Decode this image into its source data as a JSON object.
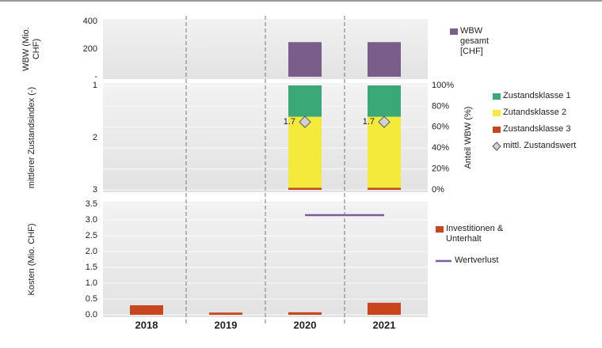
{
  "chart_data": [
    {
      "type": "bar",
      "ylabel": "WBW (Mio. CHF)",
      "ylim": [
        0,
        400
      ],
      "yticks": [
        {
          "value": 0,
          "label": "-"
        },
        200,
        400
      ],
      "series": [
        {
          "name": "WBW gesamt [CHF]",
          "color": "#7b5d8a",
          "values": [
            null,
            null,
            250,
            250
          ]
        }
      ]
    },
    {
      "type": "stacked_bar",
      "ylabel": "mittlerer Zustandsindex (-)",
      "y2label": "Anteil WBW (%)",
      "ylim": [
        3,
        1
      ],
      "yticks": [
        1,
        2,
        3
      ],
      "y2lim": [
        0,
        100
      ],
      "y2ticks": [
        {
          "value": 0,
          "label": "0%"
        },
        {
          "value": 20,
          "label": "20%"
        },
        {
          "value": 40,
          "label": "40%"
        },
        {
          "value": 60,
          "label": "60%"
        },
        {
          "value": 80,
          "label": "80%"
        },
        {
          "value": 100,
          "label": "100%"
        }
      ],
      "grid": true,
      "series": [
        {
          "name": "Zustandsklasse 1",
          "color": "#3aa877",
          "axis": "y2",
          "values": [
            null,
            null,
            30,
            30
          ]
        },
        {
          "name": "Zutandsklasse 2",
          "color": "#f3ea3c",
          "axis": "y2",
          "values": [
            null,
            null,
            68,
            68
          ]
        },
        {
          "name": "Zustandsklasse 3",
          "color": "#c8461e",
          "axis": "y2",
          "values": [
            null,
            null,
            2,
            2
          ]
        },
        {
          "name": "mittl. Zustandswert",
          "type": "scatter",
          "marker": "diamond",
          "color": "#d2d2d2",
          "values": [
            null,
            null,
            1.7,
            1.7
          ]
        }
      ]
    },
    {
      "type": "bar",
      "ylabel": "Kosten (Mio. CHF)",
      "categories": [
        "2018",
        "2019",
        "2020",
        "2021"
      ],
      "ylim": [
        0,
        3.5
      ],
      "yticks": [
        {
          "value": 0,
          "label": "0.0"
        },
        0.5,
        {
          "value": 1,
          "label": "1.0"
        },
        1.5,
        {
          "value": 2,
          "label": "2.0"
        },
        2.5,
        {
          "value": 3,
          "label": "3.0"
        },
        3.5
      ],
      "grid": true,
      "series": [
        {
          "name": "Investitionen & Unterhalt",
          "color": "#c8461e",
          "values": [
            0.3,
            0.07,
            0.08,
            0.38
          ]
        },
        {
          "name": "Wertverlust",
          "type": "line",
          "color": "#7d5a9a",
          "values": [
            null,
            null,
            3.15,
            3.15
          ]
        }
      ]
    }
  ]
}
